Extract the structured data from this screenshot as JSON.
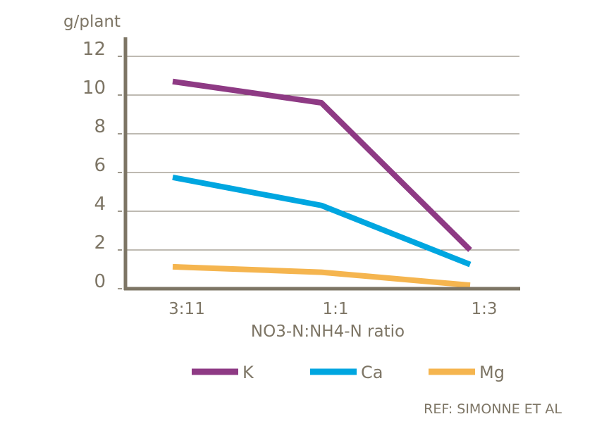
{
  "chart_data": {
    "type": "line",
    "ylabel": "g/plant",
    "xlabel": "NO3-N:NH4-N ratio",
    "categories": [
      "3:11",
      "1:1",
      "1:3"
    ],
    "ylim": [
      0,
      12
    ],
    "yticks": [
      0,
      2,
      4,
      6,
      8,
      10,
      12
    ],
    "grid": true,
    "legend_placement": "bottom",
    "series": [
      {
        "name": "K",
        "color": "#8e3a84",
        "values": [
          10.7,
          9.6,
          2.0
        ]
      },
      {
        "name": "Ca",
        "color": "#00a6e0",
        "values": [
          5.75,
          4.3,
          1.25
        ]
      },
      {
        "name": "Mg",
        "color": "#f5b54f",
        "values": [
          1.13,
          0.85,
          0.18
        ]
      }
    ],
    "axis_color": "#7d7565",
    "annotation": "REF: SIMONNE ET AL"
  }
}
